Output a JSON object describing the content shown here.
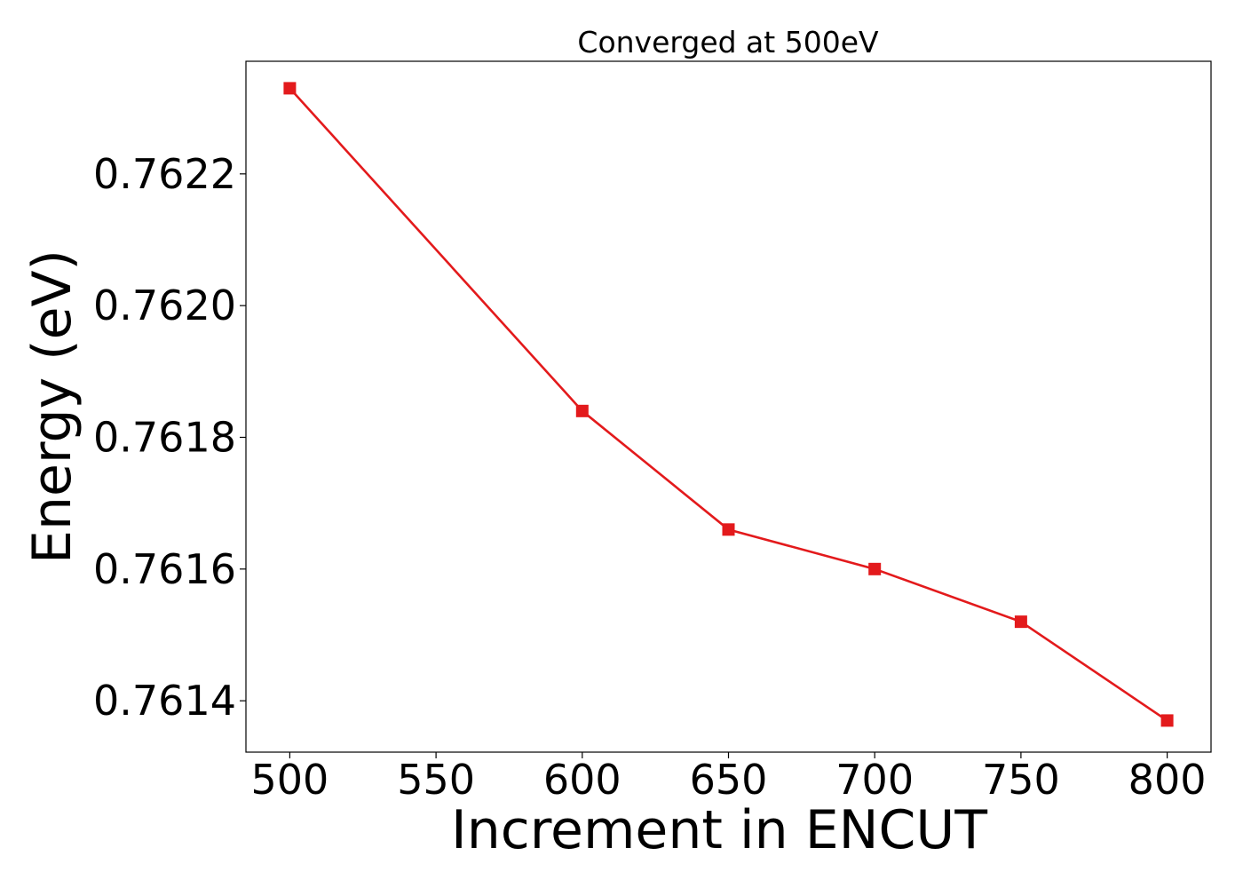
{
  "chart_data": {
    "type": "line",
    "title": "Converged at 500eV",
    "xlabel": "Increment in ENCUT",
    "ylabel": "Energy (eV)",
    "x": [
      500,
      600,
      650,
      700,
      750,
      800
    ],
    "series": [
      {
        "values": [
          0.76233,
          0.76184,
          0.76166,
          0.7616,
          0.76152,
          0.76137
        ],
        "color": "#e31a1c",
        "marker": "square"
      }
    ],
    "xticks": [
      500,
      550,
      600,
      650,
      700,
      750,
      800
    ],
    "xtick_labels": [
      "500",
      "550",
      "600",
      "650",
      "700",
      "750",
      "800"
    ],
    "yticks": [
      0.7614,
      0.7616,
      0.7618,
      0.762,
      0.7622
    ],
    "ytick_labels": [
      "0.7614",
      "0.7616",
      "0.7618",
      "0.7620",
      "0.7622"
    ],
    "xlim": [
      485,
      815
    ],
    "ylim": [
      0.761322,
      0.762371
    ],
    "grid": false,
    "legend": "none"
  }
}
